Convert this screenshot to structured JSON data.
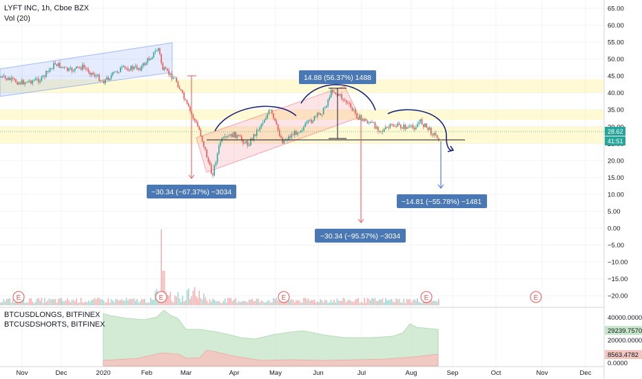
{
  "header": {
    "title": "LYFT INC, 1h, Cboe BZX",
    "volume_label": "Vol (20)"
  },
  "indicator": {
    "longs_label": "BTCUSDLONGS, BITFINEX",
    "shorts_label": "BTCUSDSHORTS, BITFINEX",
    "longs_value_tag": "29239.7570",
    "shorts_value_tag": "8563.4782",
    "axis_ticks": [
      "40000.0000",
      "20000.0000",
      "0.0000"
    ]
  },
  "price_tags": {
    "last_price": "28.62",
    "countdown": "41:51"
  },
  "callouts": [
    {
      "text": "−30.34 (−67.37%) −3034"
    },
    {
      "text": "14.88 (56.37%) 1488"
    },
    {
      "text": "−30.34 (−95.57%) −3034"
    },
    {
      "text": "−14.81 (−55.78%) −1481"
    }
  ],
  "earnings_marker": "E",
  "colors": {
    "up": "#26a69a",
    "down": "#ef5350",
    "channel_blue": "#2962ff",
    "channel_red": "#f23645",
    "zone_yellow": "#fff59d",
    "callout_bg": "#4a78b5",
    "longs_fill": "#c8e6c9",
    "shorts_fill": "#f3c6c0",
    "drawing": "#1a237e"
  },
  "chart_data": {
    "type": "candlestick",
    "title": "LYFT INC, 1h, Cboe BZX",
    "y_ticks": [
      65,
      60,
      55,
      50,
      45,
      40,
      35,
      30,
      25,
      20,
      15,
      10,
      5,
      0,
      -5,
      -10,
      -15,
      -20
    ],
    "y_tick_labels": [
      "65.00",
      "60.00",
      "55.00",
      "50.00",
      "45.00",
      "40.00",
      "35.00",
      "30.00",
      "25.00",
      "20.00",
      "15.00",
      "10.00",
      "5.00",
      "0.00",
      "−5.00",
      "−10.00",
      "−15.00",
      "−20.00"
    ],
    "ylim": [
      -22,
      66
    ],
    "x_ticks": [
      "Nov",
      "Dec",
      "2020",
      "Feb",
      "Mar",
      "Apr",
      "May",
      "Jun",
      "Jul",
      "Aug",
      "Sep",
      "Oct",
      "Nov",
      "Dec"
    ],
    "price_path": [
      [
        "Oct",
        42
      ],
      [
        "Nov",
        43
      ],
      [
        "Dec",
        46
      ],
      [
        "2020",
        44
      ],
      [
        "Feb",
        49
      ],
      [
        "Feb",
        54
      ],
      [
        "Mar",
        45
      ],
      [
        "Mar",
        35
      ],
      [
        "Mar",
        23
      ],
      [
        "Mar",
        15
      ],
      [
        "Apr",
        24
      ],
      [
        "Apr",
        26
      ],
      [
        "May",
        31
      ],
      [
        "May",
        28
      ],
      [
        "Jun",
        34
      ],
      [
        "Jun",
        40
      ],
      [
        "Jun",
        34
      ],
      [
        "Jul",
        32
      ],
      [
        "Jul",
        28
      ],
      [
        "Aug",
        29
      ],
      [
        "Aug",
        31
      ],
      [
        "Aug",
        28.62
      ]
    ],
    "last_price": 28.62,
    "horizontal_zones": [
      [
        40,
        44
      ],
      [
        32,
        35
      ],
      [
        25,
        30
      ]
    ],
    "measurements": [
      {
        "label": "−30.34 (−67.37%) −3034",
        "from": 45,
        "to": 15
      },
      {
        "label": "14.88 (56.37%) 1488",
        "from": 26,
        "to": 41
      },
      {
        "label": "−30.34 (−95.57%) −3034",
        "from": 32,
        "to": 1
      },
      {
        "label": "−14.81 (−55.78%) −1481",
        "from": 26.5,
        "to": 12
      }
    ],
    "indicator_series": [
      {
        "name": "BTCUSDLONGS, BITFINEX",
        "last": 29239.757
      },
      {
        "name": "BTCUSDSHORTS, BITFINEX",
        "last": 8563.4782
      }
    ],
    "indicator_ylim": [
      0,
      45000
    ]
  }
}
